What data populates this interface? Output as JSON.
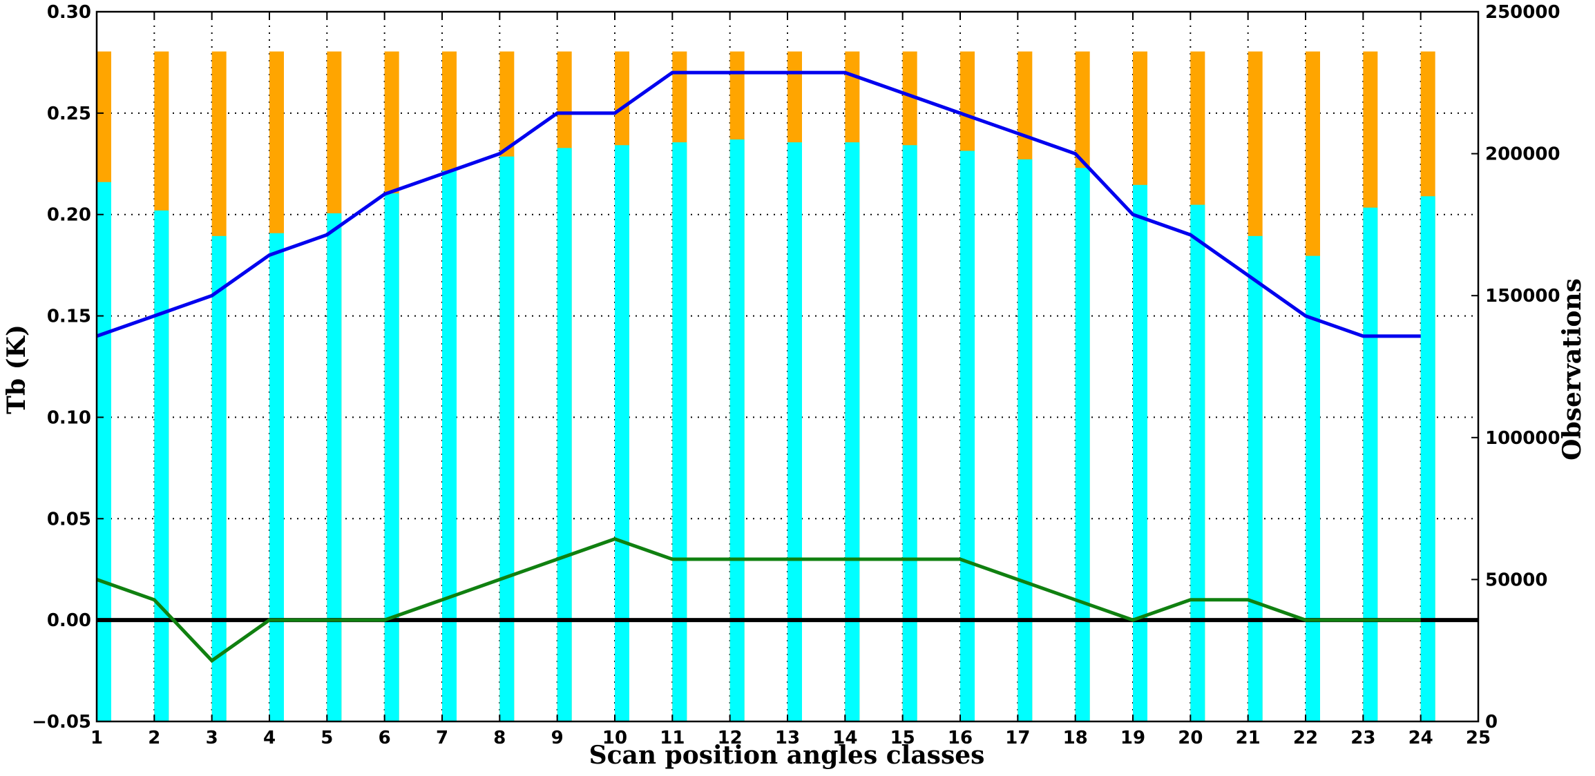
{
  "chart_data": {
    "type": "bar",
    "title": "",
    "xlabel": "Scan position angles classes",
    "ylabel": "Tb (K)",
    "y2label": "Observations",
    "xlim": [
      1,
      25
    ],
    "ylim": [
      -0.05,
      0.3
    ],
    "y2lim": [
      0,
      250000
    ],
    "x_ticks": [
      "1",
      "2",
      "3",
      "4",
      "5",
      "6",
      "7",
      "8",
      "9",
      "10",
      "11",
      "12",
      "13",
      "14",
      "15",
      "16",
      "17",
      "18",
      "19",
      "20",
      "21",
      "22",
      "23",
      "24",
      "25"
    ],
    "y_ticks": [
      "−0.05",
      "0.00",
      "0.05",
      "0.10",
      "0.15",
      "0.20",
      "0.25",
      "0.30"
    ],
    "y2_ticks": [
      "0",
      "50000",
      "100000",
      "150000",
      "200000",
      "250000"
    ],
    "grid": true,
    "categories": [
      1,
      2,
      3,
      4,
      5,
      6,
      7,
      8,
      9,
      10,
      11,
      12,
      13,
      14,
      15,
      16,
      17,
      18,
      19,
      20,
      21,
      22,
      23,
      24
    ],
    "bar_series": [
      {
        "axis": "right",
        "color": "#ffa500",
        "values": [
          236000,
          236000,
          236000,
          236000,
          236000,
          236000,
          236000,
          236000,
          236000,
          236000,
          236000,
          236000,
          236000,
          236000,
          236000,
          236000,
          236000,
          236000,
          236000,
          236000,
          236000,
          236000,
          236000,
          236000
        ]
      },
      {
        "axis": "right",
        "color": "#00ffff",
        "values": [
          190000,
          180000,
          171000,
          172000,
          179000,
          186000,
          194000,
          199000,
          202000,
          203000,
          204000,
          205000,
          204000,
          204000,
          203000,
          201000,
          198000,
          195000,
          189000,
          182000,
          171000,
          164000,
          181000,
          185000
        ]
      }
    ],
    "series": [
      {
        "axis": "left",
        "color": "#0000ee",
        "x": [
          1,
          2,
          3,
          4,
          5,
          6,
          7,
          8,
          9,
          10,
          11,
          12,
          13,
          14,
          15,
          16,
          17,
          18,
          19,
          20,
          21,
          22,
          23,
          24
        ],
        "values": [
          0.14,
          0.15,
          0.16,
          0.18,
          0.19,
          0.21,
          0.22,
          0.23,
          0.25,
          0.25,
          0.27,
          0.27,
          0.27,
          0.27,
          0.26,
          0.25,
          0.24,
          0.23,
          0.2,
          0.19,
          0.17,
          0.15,
          0.14,
          0.14
        ]
      },
      {
        "axis": "left",
        "color": "#108010",
        "x": [
          1,
          2,
          3,
          4,
          5,
          6,
          7,
          8,
          9,
          10,
          11,
          12,
          13,
          14,
          15,
          16,
          17,
          18,
          19,
          20,
          21,
          22,
          23,
          24
        ],
        "values": [
          0.02,
          0.01,
          -0.02,
          0.0,
          0.0,
          0.0,
          0.01,
          0.02,
          0.03,
          0.04,
          0.03,
          0.03,
          0.03,
          0.03,
          0.03,
          0.03,
          0.02,
          0.01,
          0.0,
          0.01,
          0.01,
          0.0,
          0.0,
          0.0
        ]
      }
    ],
    "reference_line": {
      "y": 0.0,
      "color": "#000000"
    }
  }
}
